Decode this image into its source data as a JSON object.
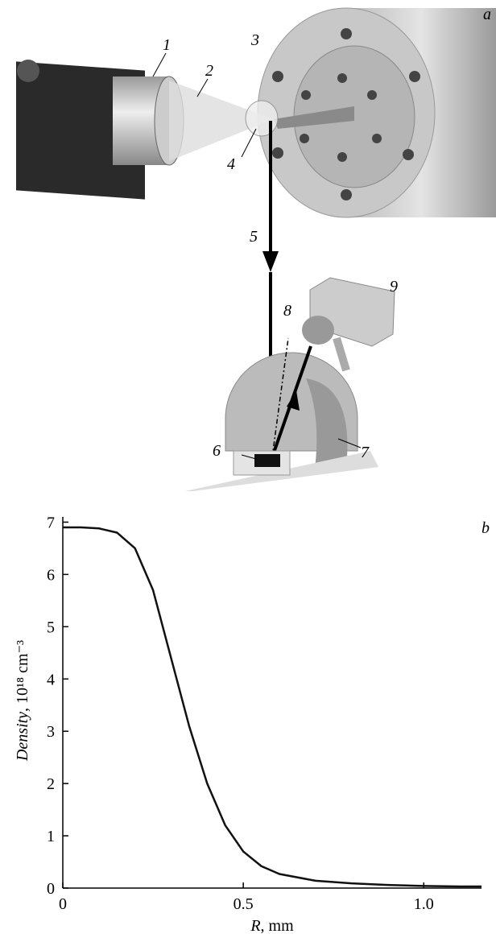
{
  "figure_a": {
    "panel_label": "a",
    "labels": [
      "1",
      "2",
      "3",
      "4",
      "5",
      "6",
      "7",
      "8",
      "9"
    ]
  },
  "chart_data": {
    "type": "line",
    "panel_label": "b",
    "x_label": {
      "name": "R",
      "unit": ", mm"
    },
    "y_label": {
      "name": "Density",
      "unit": ", 10¹⁸ cm⁻³"
    },
    "x": [
      0,
      0.05,
      0.1,
      0.15,
      0.2,
      0.25,
      0.3,
      0.35,
      0.4,
      0.45,
      0.5,
      0.55,
      0.6,
      0.7,
      0.8,
      0.9,
      1.0,
      1.1,
      1.16
    ],
    "series": [
      {
        "color": "#111111",
        "values": [
          6.9,
          6.9,
          6.88,
          6.8,
          6.5,
          5.7,
          4.4,
          3.1,
          2.0,
          1.2,
          0.7,
          0.42,
          0.27,
          0.14,
          0.09,
          0.06,
          0.04,
          0.03,
          0.03
        ]
      }
    ],
    "xlim": [
      0,
      1.16
    ],
    "ylim": [
      0,
      7.1
    ],
    "xticks": [
      0,
      0.5,
      {
        "value": 1.0,
        "label": "1.0"
      }
    ],
    "yticks": [
      0,
      1,
      2,
      3,
      4,
      5,
      6,
      7
    ]
  }
}
